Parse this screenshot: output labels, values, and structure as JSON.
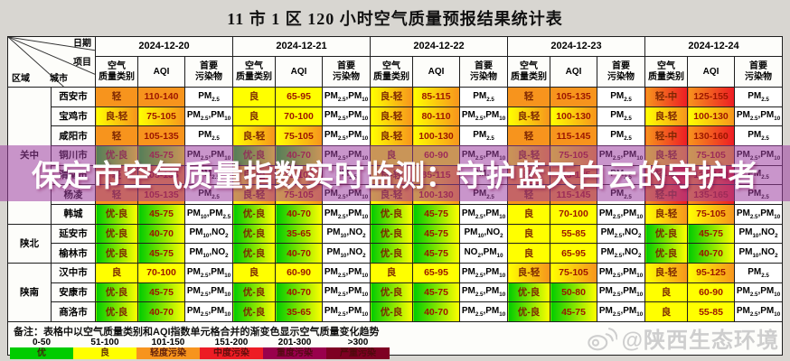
{
  "title": "11 市 1 区 120 小时空气质量预报结果统计表",
  "banner": {
    "text": "保定市空气质量指数实时监测：守护蓝天白云的守护者"
  },
  "watermark": {
    "icon": "weibo-icon",
    "handle": "@陕西生态环境"
  },
  "table": {
    "corner": {
      "date": "日期",
      "item": "项目",
      "region": "区域",
      "city": "城市"
    },
    "dates": [
      "2024-12-20",
      "2024-12-21",
      "2024-12-22",
      "2024-12-23",
      "2024-12-24"
    ],
    "sub_headers": [
      "空气质量类别",
      "AQI",
      "首要污染物"
    ],
    "grade_colors": {
      "优": "#00cc00",
      "良": "#ffff00",
      "轻": "#f7941d",
      "中": "#ed1c24"
    },
    "regions": [
      {
        "name": "关中",
        "cities": [
          {
            "name": "西安市",
            "cells": [
              [
                "轻",
                "110-140",
                "PM2.5"
              ],
              [
                "良",
                "65-95",
                "PM2.5,PM10"
              ],
              [
                "良-轻",
                "85-115",
                "PM2.5"
              ],
              [
                "轻",
                "105-135",
                "PM2.5"
              ],
              [
                "轻-中",
                "125-155",
                "PM2.5"
              ]
            ]
          },
          {
            "name": "宝鸡市",
            "cells": [
              [
                "良-轻",
                "75-105",
                "PM2.5,PM10"
              ],
              [
                "良",
                "70-100",
                "PM2.5,PM10"
              ],
              [
                "良-轻",
                "80-110",
                "PM2.5,PM10"
              ],
              [
                "良-轻",
                "100-130",
                "PM2.5"
              ],
              [
                "良-轻",
                "100-130",
                "PM2.5,PM10"
              ]
            ]
          },
          {
            "name": "咸阳市",
            "cells": [
              [
                "轻",
                "105-135",
                "PM2.5"
              ],
              [
                "良-轻",
                "75-105",
                "PM2.5,PM10"
              ],
              [
                "良-轻",
                "100-130",
                "PM2.5"
              ],
              [
                "轻",
                "115-145",
                "PM2.5"
              ],
              [
                "轻-中",
                "130-160",
                "PM2.5"
              ]
            ]
          },
          {
            "name": "铜川市",
            "cells": [
              [
                "优-良",
                "45-75",
                "PM2.5,PM10"
              ],
              [
                "优-良",
                "40-70",
                "PM2.5,PM10"
              ],
              [
                "良",
                "60-90",
                "PM2.5,PM10"
              ],
              [
                "良-轻",
                "75-105",
                "PM2.5,PM10"
              ],
              [
                "良-轻",
                "75-105",
                "PM2.5,PM10"
              ]
            ]
          },
          {
            "name": "渭南市",
            "cells": [
              [
                "轻",
                "105-135",
                "PM2.5"
              ],
              [
                "良-轻",
                "75-105",
                "PM2.5"
              ],
              [
                "良-轻",
                "85-115",
                "PM2.5"
              ],
              [
                "轻",
                "115-145",
                "PM2.5"
              ],
              [
                "轻-中",
                "130-160",
                "PM2.5"
              ]
            ]
          },
          {
            "name": "杨凌",
            "cells": [
              [
                "轻",
                "105-135",
                "PM2.5"
              ],
              [
                "良-轻",
                "75-105",
                "PM2.5,PM10"
              ],
              [
                "良-轻",
                "100-130",
                "PM2.5"
              ],
              [
                "轻",
                "115-145",
                "PM2.5"
              ],
              [
                "轻-中",
                "135-165",
                "PM2.5"
              ]
            ]
          },
          {
            "name": "韩城",
            "cells": [
              [
                "优-良",
                "45-75",
                "PM10,PM2.5"
              ],
              [
                "优-良",
                "40-70",
                "PM2.5,PM10"
              ],
              [
                "优-良",
                "45-75",
                "PM2.5,PM10"
              ],
              [
                "良",
                "70-100",
                "PM2.5,PM10"
              ],
              [
                "良-轻",
                "75-105",
                "PM2.5,PM10"
              ]
            ]
          }
        ]
      },
      {
        "name": "陕北",
        "cities": [
          {
            "name": "延安市",
            "cells": [
              [
                "优-良",
                "40-70",
                "PM10,NO2"
              ],
              [
                "优-良",
                "35-65",
                "PM10,NO2"
              ],
              [
                "优-良",
                "45-75",
                "PM10,NO2"
              ],
              [
                "良",
                "55-85",
                "PM2.5,NO2"
              ],
              [
                "优-良",
                "45-75",
                "PM10,NO2"
              ]
            ]
          },
          {
            "name": "榆林市",
            "cells": [
              [
                "优-良",
                "45-75",
                "PM10,NO2"
              ],
              [
                "优-良",
                "40-70",
                "PM10,NO2"
              ],
              [
                "优-良",
                "45-75",
                "NO2,PM10"
              ],
              [
                "良",
                "65-95",
                "PM2.5,NO2"
              ],
              [
                "优-良",
                "40-70",
                "PM10,NO2"
              ]
            ]
          }
        ]
      },
      {
        "name": "陕南",
        "cities": [
          {
            "name": "汉中市",
            "cells": [
              [
                "良",
                "70-100",
                "PM2.5,PM10"
              ],
              [
                "良",
                "60-90",
                "PM2.5,PM10"
              ],
              [
                "良",
                "65-95",
                "PM2.5,PM10"
              ],
              [
                "良-轻",
                "75-105",
                "PM2.5,PM10"
              ],
              [
                "良-轻",
                "95-125",
                "PM2.5"
              ]
            ]
          },
          {
            "name": "安康市",
            "cells": [
              [
                "优-良",
                "45-75",
                "PM2.5,PM10"
              ],
              [
                "优-良",
                "40-70",
                "PM2.5,PM10"
              ],
              [
                "优-良",
                "45-75",
                "PM2.5,PM10"
              ],
              [
                "优-良",
                "50-80",
                "PM2.5,PM10"
              ],
              [
                "良",
                "60-90",
                "PM2.5,PM10"
              ]
            ]
          },
          {
            "name": "商洛市",
            "cells": [
              [
                "优-良",
                "40-70",
                "PM2.5,PM10"
              ],
              [
                "优-良",
                "35-65",
                "PM2.5,PM10"
              ],
              [
                "优-良",
                "40-70",
                "PM2.5,PM10"
              ],
              [
                "优-良",
                "45-75",
                "PM2.5,PM10"
              ],
              [
                "良",
                "55-85",
                "PM2.5,PM10"
              ]
            ]
          }
        ]
      }
    ]
  },
  "legend": {
    "note": "备注：表格中以空气质量类别和AQI指数单元格合并的渐变色显示空气质量变化趋势",
    "entries": [
      {
        "range": "0-50",
        "label": "优",
        "color": "#00cc00"
      },
      {
        "range": "51-100",
        "label": "良",
        "color": "#ffff00"
      },
      {
        "range": "101-150",
        "label": "轻度污染",
        "color": "#f7941d"
      },
      {
        "range": "151-200",
        "label": "中度污染",
        "color": "#ed1c24"
      },
      {
        "range": "201-300",
        "label": "重度污染",
        "color": "#99004c"
      },
      {
        "range": ">300",
        "label": "严重污染",
        "color": "#7e0023"
      }
    ]
  },
  "colors": {
    "page_bg": "#d8d6d1",
    "banner_overlay": "rgba(157,62,160,0.55)",
    "banner_text": "#ffffff",
    "category_text": "#7c2603",
    "aqi_text": "#9c1500",
    "watermark_text": "#c7c7c7"
  }
}
